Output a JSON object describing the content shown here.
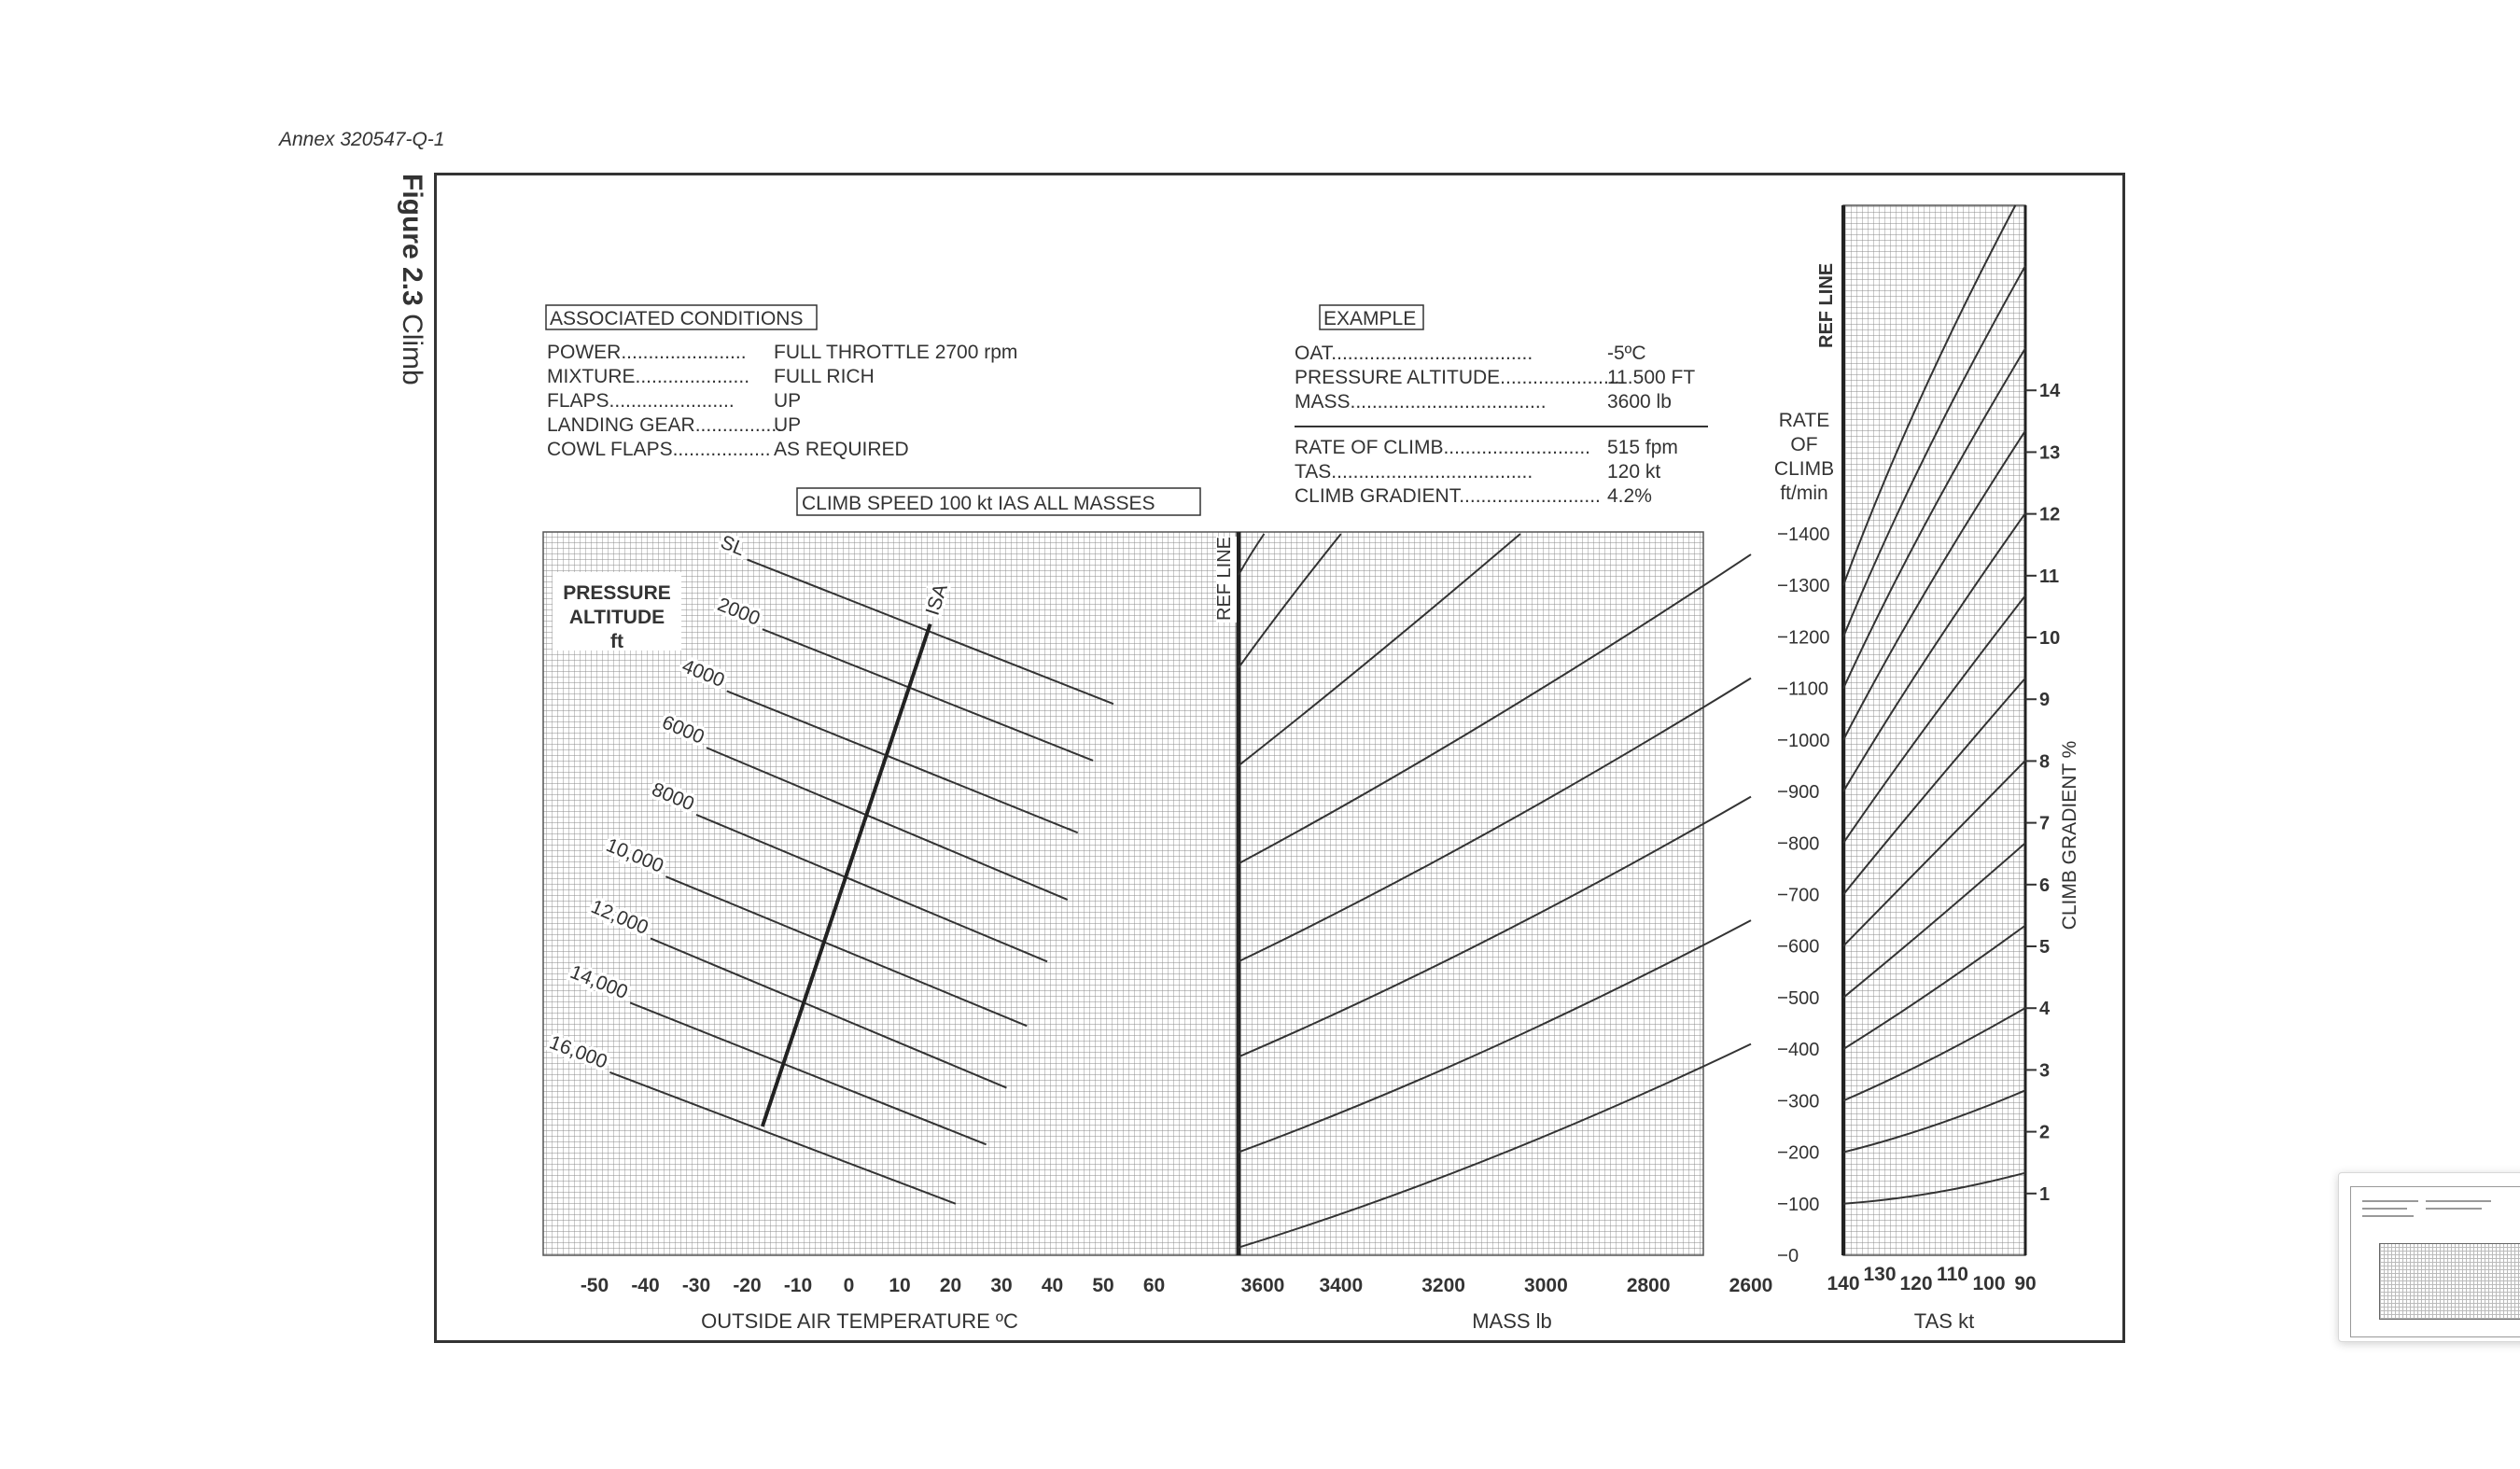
{
  "page": {
    "annex": "Annex 320547-Q-1",
    "figure_number": "Figure 2.3",
    "figure_title": "Climb"
  },
  "conditions": {
    "heading": "ASSOCIATED CONDITIONS",
    "rows": [
      {
        "label": "POWER",
        "value": "FULL THROTTLE  2700 rpm"
      },
      {
        "label": "MIXTURE",
        "value": "FULL RICH"
      },
      {
        "label": "FLAPS",
        "value": "UP"
      },
      {
        "label": "LANDING GEAR",
        "value": "UP"
      },
      {
        "label": "COWL FLAPS",
        "value": "AS REQUIRED"
      }
    ],
    "climb_speed": "CLIMB SPEED  100 kt  IAS    ALL MASSES"
  },
  "example": {
    "heading": "EXAMPLE",
    "inputs": [
      {
        "label": "OAT",
        "value": "-5ºC"
      },
      {
        "label": "PRESSURE ALTITUDE",
        "value": "11.500 FT"
      },
      {
        "label": "MASS",
        "value": "3600 lb"
      }
    ],
    "results": [
      {
        "label": "RATE OF CLIMB",
        "value": "515 fpm"
      },
      {
        "label": "TAS",
        "value": "120 kt"
      },
      {
        "label": "CLIMB GRADIENT",
        "value": "4.2%"
      }
    ]
  },
  "chart_data": [
    {
      "type": "line",
      "panel": "temperature",
      "xlabel": "OUTSIDE AIR TEMPERATURE   ºC",
      "x_ticks": [
        "-50",
        "-40",
        "-30",
        "-20",
        "-10",
        "0",
        "10",
        "20",
        "30",
        "40",
        "50",
        "60"
      ],
      "xlim": [
        -55,
        75
      ],
      "ylim": [
        0,
        1400
      ],
      "legend_label": [
        "PRESSURE",
        "ALTITUDE",
        "ft"
      ],
      "isa_label": "ISA",
      "isa_line": [
        {
          "x": -17,
          "y": 250
        },
        {
          "x": 16,
          "y": 1225
        }
      ],
      "series": [
        {
          "name": "SL",
          "points": [
            [
              -20,
              1350
            ],
            [
              52,
              1070
            ]
          ]
        },
        {
          "name": "2000",
          "points": [
            [
              -17,
              1215
            ],
            [
              48,
              960
            ]
          ]
        },
        {
          "name": "4000",
          "points": [
            [
              -24,
              1095
            ],
            [
              45,
              820
            ]
          ]
        },
        {
          "name": "6000",
          "points": [
            [
              -28,
              985
            ],
            [
              43,
              690
            ]
          ]
        },
        {
          "name": "8000",
          "points": [
            [
              -30,
              855
            ],
            [
              39,
              570
            ]
          ]
        },
        {
          "name": "10,000",
          "points": [
            [
              -36,
              735
            ],
            [
              35,
              445
            ]
          ]
        },
        {
          "name": "12,000",
          "points": [
            [
              -39,
              615
            ],
            [
              31,
              325
            ]
          ]
        },
        {
          "name": "14,000",
          "points": [
            [
              -43,
              490
            ],
            [
              27,
              215
            ]
          ]
        },
        {
          "name": "16,000",
          "points": [
            [
              -47,
              355
            ],
            [
              21,
              100
            ]
          ]
        }
      ]
    },
    {
      "type": "line",
      "panel": "mass",
      "xlabel": "MASS lb",
      "x_ticks": [
        "3600",
        "3400",
        "3200",
        "3000",
        "2800",
        "2600"
      ],
      "xlim": [
        3600,
        2600
      ],
      "ylabel": "REF LINE",
      "series": [
        {
          "points": [
            [
              3600,
              15
            ],
            [
              2600,
              410
            ]
          ]
        },
        {
          "points": [
            [
              3600,
              200
            ],
            [
              2600,
              650
            ]
          ]
        },
        {
          "points": [
            [
              3600,
              385
            ],
            [
              2600,
              890
            ]
          ]
        },
        {
          "points": [
            [
              3600,
              570
            ],
            [
              2600,
              1120
            ]
          ]
        },
        {
          "points": [
            [
              3600,
              760
            ],
            [
              2600,
              1360
            ]
          ]
        },
        {
          "points": [
            [
              3600,
              950
            ],
            [
              3050,
              1400
            ]
          ]
        },
        {
          "points": [
            [
              3600,
              1140
            ],
            [
              3400,
              1400
            ]
          ]
        },
        {
          "points": [
            [
              3600,
              1320
            ],
            [
              3550,
              1400
            ]
          ]
        }
      ]
    },
    {
      "type": "line",
      "panel": "tas",
      "xlabel": "TAS kt",
      "x_ticks": [
        "140",
        "130",
        "120",
        "110",
        "100",
        "90"
      ],
      "xlim": [
        140,
        90
      ],
      "ylabel": "RATE OF CLIMB ft/min",
      "y_title": [
        "RATE",
        "OF",
        "CLIMB",
        "ft/min"
      ],
      "y_ticks": [
        "0",
        "100",
        "200",
        "300",
        "400",
        "500",
        "600",
        "700",
        "800",
        "900",
        "1000",
        "1100",
        "1200",
        "1300",
        "1400"
      ],
      "ylim": [
        0,
        1400
      ],
      "ref_label": "REF LINE",
      "y2label": "CLIMB GRADIENT  %",
      "y2_ticks": [
        "1",
        "2",
        "3",
        "4",
        "5",
        "6",
        "7",
        "8",
        "9",
        "10",
        "11",
        "12",
        "13",
        "14"
      ],
      "y2lim": [
        0,
        14.2
      ],
      "series": [
        {
          "points": [
            [
              140,
              100
            ],
            [
              90,
              160
            ]
          ]
        },
        {
          "points": [
            [
              140,
              200
            ],
            [
              90,
              320
            ]
          ]
        },
        {
          "points": [
            [
              140,
              300
            ],
            [
              90,
              480
            ]
          ]
        },
        {
          "points": [
            [
              140,
              400
            ],
            [
              90,
              640
            ]
          ]
        },
        {
          "points": [
            [
              140,
              500
            ],
            [
              90,
              800
            ]
          ]
        },
        {
          "points": [
            [
              140,
              600
            ],
            [
              90,
              960
            ]
          ]
        },
        {
          "points": [
            [
              140,
              700
            ],
            [
              90,
              1120
            ]
          ]
        },
        {
          "points": [
            [
              140,
              800
            ],
            [
              90,
              1280
            ]
          ]
        },
        {
          "points": [
            [
              140,
              900
            ],
            [
              90,
              1440
            ]
          ]
        },
        {
          "points": [
            [
              140,
              1000
            ],
            [
              90,
              1600
            ]
          ]
        },
        {
          "points": [
            [
              140,
              1100
            ],
            [
              90,
              1760
            ]
          ]
        },
        {
          "points": [
            [
              140,
              1200
            ],
            [
              90,
              1920
            ]
          ]
        },
        {
          "points": [
            [
              140,
              1300
            ],
            [
              90,
              2080
            ]
          ]
        }
      ]
    }
  ]
}
